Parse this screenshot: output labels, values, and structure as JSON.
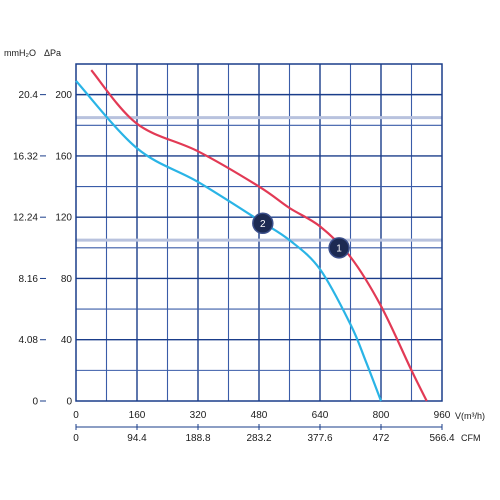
{
  "chart_data": {
    "type": "line",
    "y_unit_label_left": "mmH₂O",
    "y_unit_label_right": "ΔPa",
    "x_unit_label": "V(m³/h)",
    "x2_unit_label": "CFM",
    "y_ticks_pa": [
      0,
      40,
      80,
      120,
      160,
      200
    ],
    "y_ticks_mmh2o_labels": [
      "0",
      "4.08",
      "8.16",
      "12.24",
      "16.32",
      "20.4"
    ],
    "x_ticks_m3h": [
      0,
      160,
      320,
      480,
      640,
      800,
      960
    ],
    "x_ticks_cfm_labels": [
      "0",
      "94.4",
      "188.8",
      "283.2",
      "377.6",
      "472",
      "566.4"
    ],
    "xlim": [
      0,
      960
    ],
    "ylim": [
      0,
      220
    ],
    "grid": true,
    "series": [
      {
        "name": "1",
        "color": "#e23a55",
        "x": [
          40,
          160,
          320,
          480,
          560,
          640,
          720,
          800,
          880,
          920
        ],
        "y": [
          216,
          181,
          163,
          140,
          126,
          114,
          94,
          62,
          20,
          0
        ]
      },
      {
        "name": "2",
        "color": "#2ab4e6",
        "x": [
          0,
          160,
          320,
          480,
          560,
          640,
          720,
          760,
          800
        ],
        "y": [
          209,
          165,
          143,
          118,
          105,
          86,
          50,
          26,
          0
        ]
      }
    ],
    "markers": [
      {
        "label": "1",
        "x": 690,
        "y": 100
      },
      {
        "label": "2",
        "x": 490,
        "y": 116
      }
    ]
  }
}
